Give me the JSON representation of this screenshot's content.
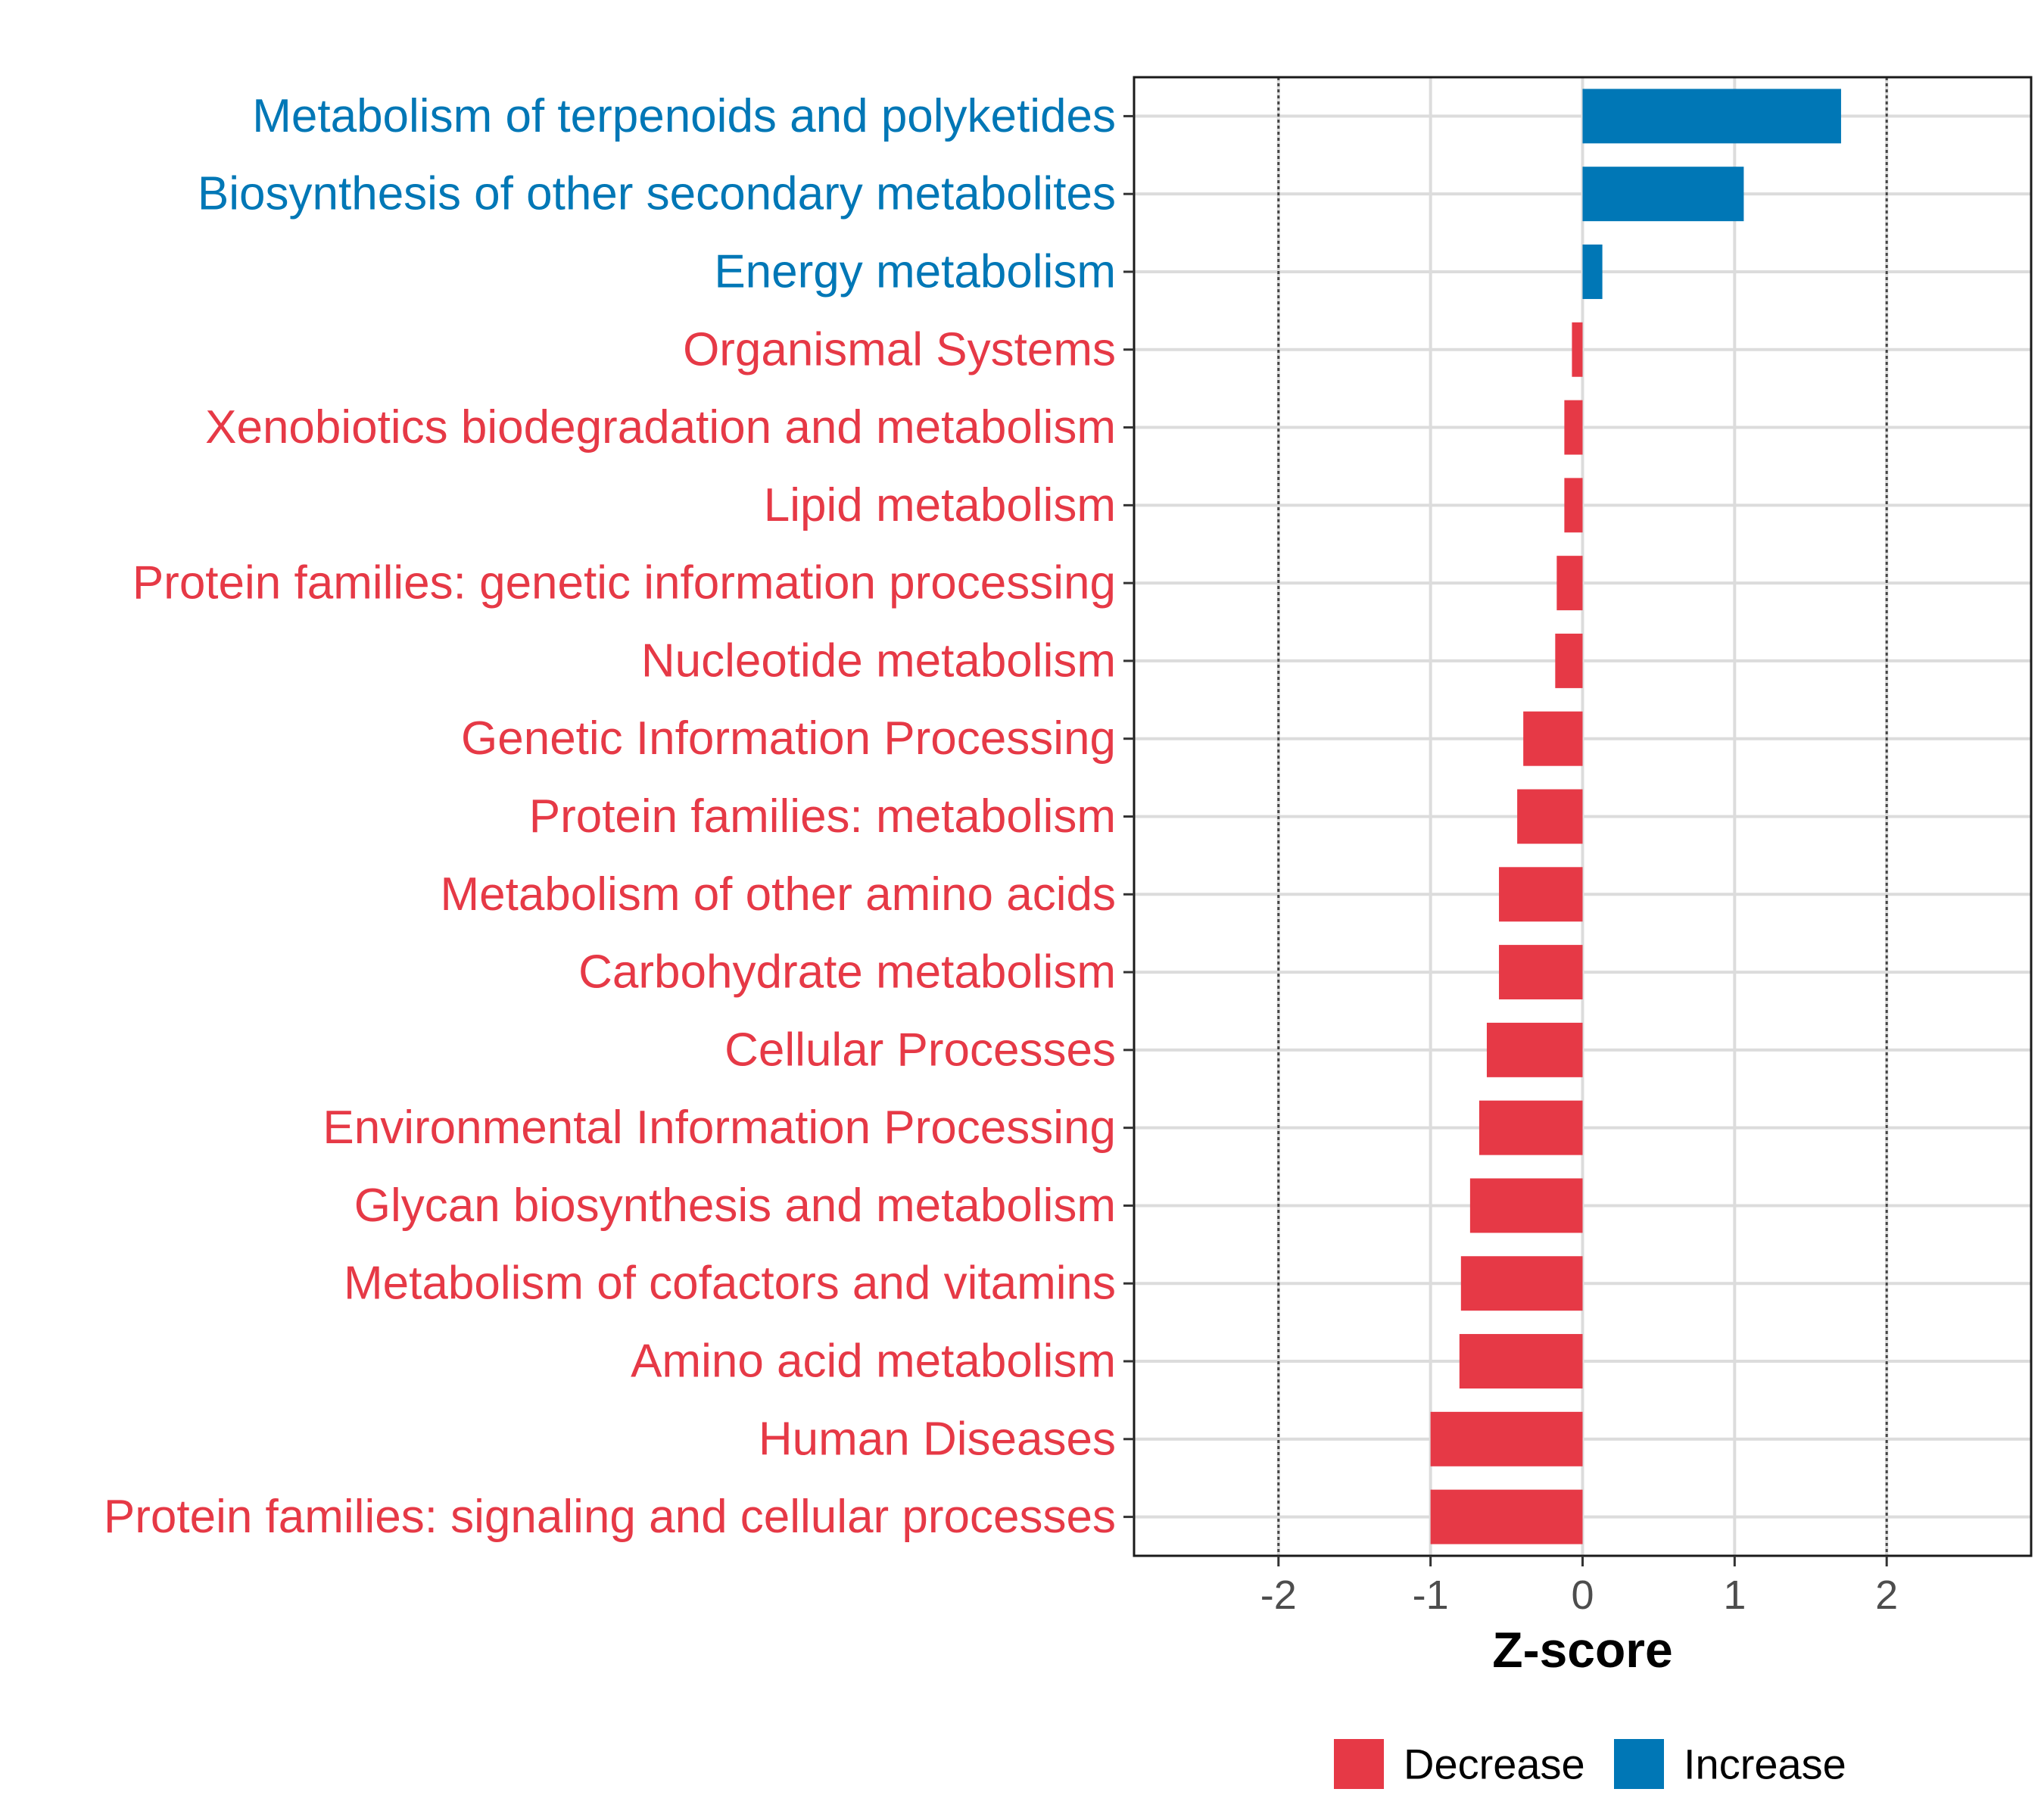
{
  "chart_data": {
    "type": "bar",
    "orientation": "horizontal",
    "title": "",
    "xlabel": "Z-score",
    "ylabel": "",
    "xlim": [
      -2.95,
      2.95
    ],
    "x_ticks": [
      -2,
      -1,
      0,
      1,
      2
    ],
    "x_tick_labels": [
      "-2",
      "-1",
      "0",
      "1",
      "2"
    ],
    "reference_lines": [
      -2,
      2
    ],
    "grid": true,
    "categories": [
      "Metabolism of terpenoids and polyketides",
      "Biosynthesis of other secondary metabolites",
      "Energy metabolism",
      "Organismal Systems",
      "Xenobiotics biodegradation and metabolism",
      "Lipid metabolism",
      "Protein families: genetic information processing",
      "Nucleotide metabolism",
      "Genetic Information Processing",
      "Protein families: metabolism",
      "Metabolism of other amino acids",
      "Carbohydrate metabolism",
      "Cellular Processes",
      "Environmental Information Processing",
      "Glycan biosynthesis and metabolism",
      "Metabolism of cofactors and vitamins",
      "Amino acid metabolism",
      "Human Diseases",
      "Protein families: signaling and cellular processes"
    ],
    "values": [
      1.7,
      1.06,
      0.13,
      -0.07,
      -0.12,
      -0.12,
      -0.17,
      -0.18,
      -0.39,
      -0.43,
      -0.55,
      -0.55,
      -0.63,
      -0.68,
      -0.74,
      -0.8,
      -0.81,
      -1.0,
      -1.0
    ],
    "groups": [
      "Increase",
      "Increase",
      "Increase",
      "Decrease",
      "Decrease",
      "Decrease",
      "Decrease",
      "Decrease",
      "Decrease",
      "Decrease",
      "Decrease",
      "Decrease",
      "Decrease",
      "Decrease",
      "Decrease",
      "Decrease",
      "Decrease",
      "Decrease",
      "Decrease"
    ],
    "legend": {
      "position": "bottom",
      "items": [
        {
          "label": "Decrease",
          "color": "#e63946"
        },
        {
          "label": "Increase",
          "color": "#0077b6"
        }
      ]
    },
    "colors": {
      "Decrease": "#e63946",
      "Increase": "#0077b6"
    }
  }
}
